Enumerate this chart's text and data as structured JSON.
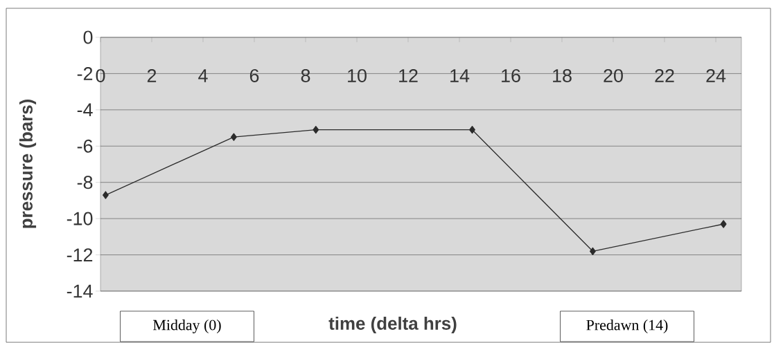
{
  "chart_data": {
    "type": "line",
    "xlabel": "time (delta hrs)",
    "ylabel": "pressure (bars)",
    "annotations": [
      "Midday (0)",
      "Predawn (14)"
    ],
    "x": [
      0.2,
      5.2,
      8.4,
      14.5,
      19.2,
      24.3
    ],
    "series": [
      {
        "color": "#2b2b2b",
        "values": [
          -8.7,
          -5.5,
          -5.1,
          -5.1,
          -11.8,
          -10.3
        ]
      }
    ],
    "xlim": [
      0,
      25
    ],
    "ylim": [
      -14,
      0
    ],
    "xticks": [
      0,
      2,
      4,
      6,
      8,
      10,
      12,
      14,
      16,
      18,
      20,
      22,
      24
    ],
    "yticks": [
      0,
      -2,
      -4,
      -6,
      -8,
      -10,
      -12,
      -14
    ],
    "grid": "y",
    "marker": "diamond",
    "line_style": "solid"
  }
}
